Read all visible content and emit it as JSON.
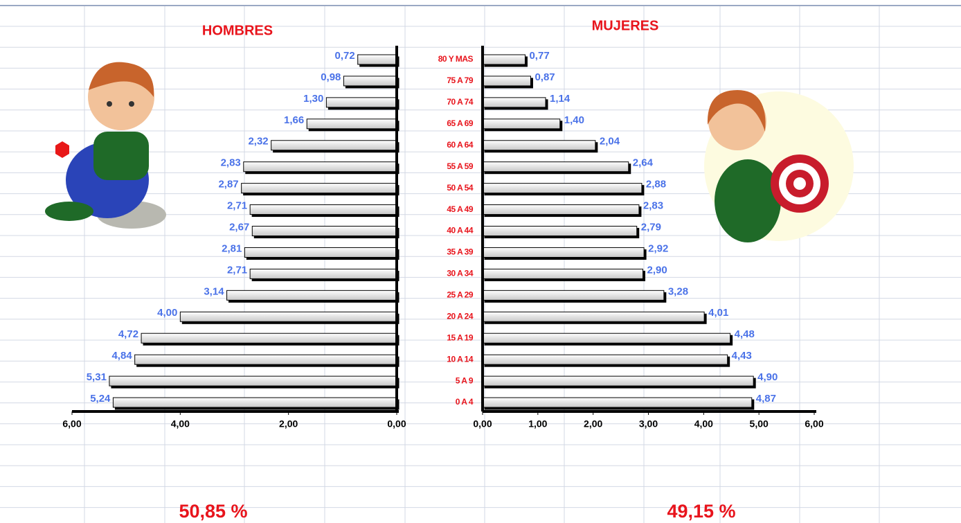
{
  "chart_data": [
    {
      "type": "bar",
      "orientation": "horizontal",
      "title": "HOMBRES",
      "categories": [
        "80 Y MAS",
        "75 A 79",
        "70 A 74",
        "65 A 69",
        "60 A 64",
        "55 A 59",
        "50 A 54",
        "45 A 49",
        "40 A 44",
        "35 A 39",
        "30 A 34",
        "25 A 29",
        "20 A 24",
        "15 A 19",
        "10 A 14",
        "5 A 9",
        "0 A 4"
      ],
      "values": [
        0.72,
        0.98,
        1.3,
        1.66,
        2.32,
        2.83,
        2.87,
        2.71,
        2.67,
        2.81,
        2.71,
        3.14,
        4.0,
        4.72,
        4.84,
        5.31,
        5.24
      ],
      "value_labels": [
        "0,72",
        "0,98",
        "1,30",
        "1,66",
        "2,32",
        "2,83",
        "2,87",
        "2,71",
        "2,67",
        "2,81",
        "2,71",
        "3,14",
        "4,00",
        "4,72",
        "4,84",
        "5,31",
        "5,24"
      ],
      "color": "#e4e4e4",
      "xlim": [
        6,
        0
      ],
      "xticks": [
        {
          "value": 6,
          "label": "6,00"
        },
        {
          "value": 4,
          "label": "4,00"
        },
        {
          "value": 2,
          "label": "2,00"
        },
        {
          "value": 0,
          "label": "0,00"
        }
      ],
      "grid": false,
      "annotation": "50,85 %"
    },
    {
      "type": "bar",
      "orientation": "horizontal",
      "title": "MUJERES",
      "values": [
        0.77,
        0.87,
        1.14,
        1.4,
        2.04,
        2.64,
        2.88,
        2.83,
        2.79,
        2.92,
        2.9,
        3.28,
        4.01,
        4.48,
        4.43,
        4.9,
        4.87
      ],
      "value_labels": [
        "0,77",
        "0,87",
        "1,14",
        "1,40",
        "2,04",
        "2,64",
        "2,88",
        "2,83",
        "2,79",
        "2,92",
        "2,90",
        "3,28",
        "4,01",
        "4,48",
        "4,43",
        "4,90",
        "4,87"
      ],
      "color": "#e4e4e4",
      "xlim": [
        0,
        6
      ],
      "xticks": [
        {
          "value": 0,
          "label": "0,00"
        },
        {
          "value": 1,
          "label": "1,00"
        },
        {
          "value": 2,
          "label": "2,00"
        },
        {
          "value": 3,
          "label": "3,00"
        },
        {
          "value": 4,
          "label": "4,00"
        },
        {
          "value": 5,
          "label": "5,00"
        },
        {
          "value": 6,
          "label": "6,00"
        }
      ],
      "grid": false,
      "annotation": "49,15 %"
    }
  ]
}
